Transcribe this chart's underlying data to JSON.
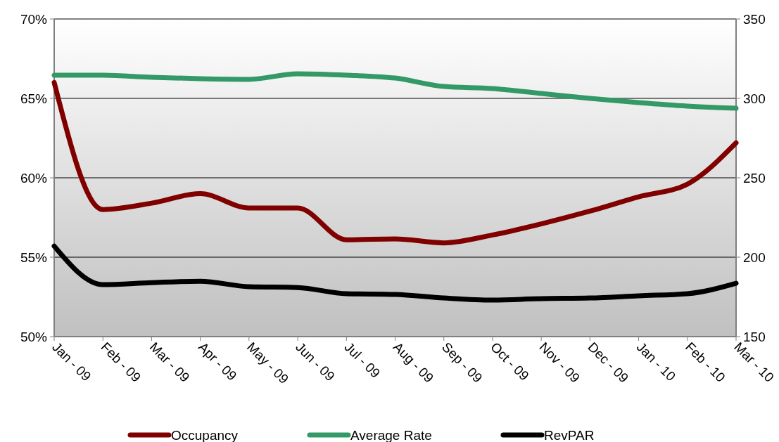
{
  "chart_data": {
    "type": "line",
    "categories": [
      "Jan - 09",
      "Feb - 09",
      "Mar - 09",
      "Apr - 09",
      "May - 09",
      "Jun - 09",
      "Jul - 09",
      "Aug - 09",
      "Sep - 09",
      "Oct - 09",
      "Nov - 09",
      "Dec - 09",
      "Jan - 10",
      "Feb - 10",
      "Mar - 10"
    ],
    "series": [
      {
        "name": "Occupancy",
        "color": "#800000",
        "values": [
          66.0,
          58.0,
          58.4,
          59.0,
          58.1,
          58.1,
          56.1,
          56.15,
          55.9,
          56.4,
          57.1,
          57.9,
          58.8,
          59.6,
          62.2
        ]
      },
      {
        "name": "Average Rate",
        "color": "#339966",
        "axis": "y2",
        "values": [
          314.6,
          314.6,
          313.3,
          312.4,
          312,
          315.5,
          314.6,
          312.8,
          307.5,
          306.2,
          303.1,
          300,
          297.3,
          295.1,
          293.8
        ]
      },
      {
        "name": "RevPAR",
        "color": "#000000",
        "axis": "y2",
        "values": [
          207,
          182.7,
          184,
          184.9,
          181.4,
          180.9,
          177,
          176.5,
          174.3,
          173,
          173.9,
          174.3,
          175.7,
          177,
          183.6
        ]
      }
    ],
    "ylim": [
      50,
      70
    ],
    "yticks": [
      {
        "value": 50,
        "label": "50%"
      },
      {
        "value": 55,
        "label": "55%"
      },
      {
        "value": 60,
        "label": "60%"
      },
      {
        "value": 65,
        "label": "65%"
      },
      {
        "value": 70,
        "label": "70%"
      }
    ],
    "y2lim": [
      150,
      350
    ],
    "y2ticks": [
      150,
      200,
      250,
      300,
      350
    ],
    "grid": "y",
    "legend": "bottom",
    "marker": "none",
    "line_style": "solid"
  }
}
